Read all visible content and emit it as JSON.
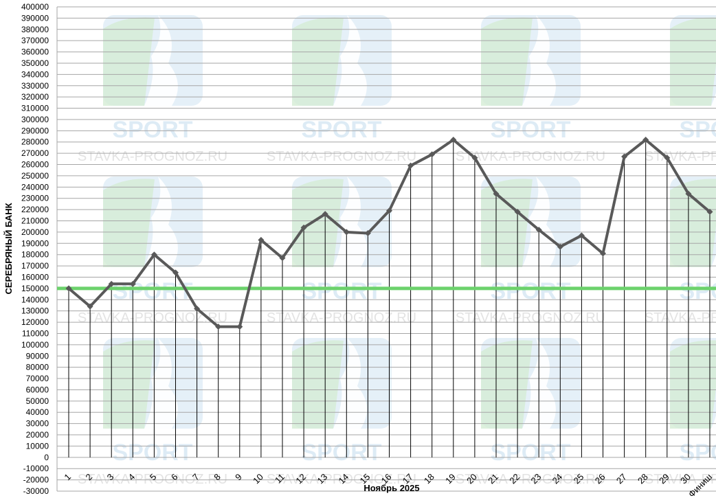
{
  "chart_data": {
    "type": "line",
    "title": "",
    "xlabel": "Ноябрь 2025",
    "ylabel": "СЕРЕБРЯНЫЙ БАНК",
    "ylim": [
      -30000,
      400000
    ],
    "ytick_step": 10000,
    "grid": "horizontal",
    "categories": [
      "1",
      "2",
      "3",
      "4",
      "5",
      "6",
      "7",
      "8",
      "9",
      "10",
      "11",
      "12",
      "13",
      "14",
      "15",
      "16",
      "17",
      "18",
      "19",
      "20",
      "21",
      "22",
      "23",
      "24",
      "25",
      "26",
      "27",
      "28",
      "29",
      "30",
      "Финиш"
    ],
    "series": [
      {
        "values": [
          150000,
          134000,
          154000,
          154000,
          180000,
          164000,
          132000,
          116000,
          116000,
          193000,
          177000,
          204000,
          216000,
          200000,
          199000,
          219000,
          259000,
          269000,
          282000,
          266000,
          234000,
          218000,
          202000,
          187000,
          197000,
          181000,
          267000,
          282000,
          266000,
          234000,
          218000
        ],
        "color": "#595959"
      }
    ],
    "reference_line": {
      "value": 150000,
      "color": "#6cd26c"
    },
    "watermark": {
      "brand": "SPORT",
      "url": "STAVKA-PROGNOZ.RU",
      "colors": {
        "green": "#d4ecd4",
        "blue": "#cfe3f2"
      }
    }
  }
}
